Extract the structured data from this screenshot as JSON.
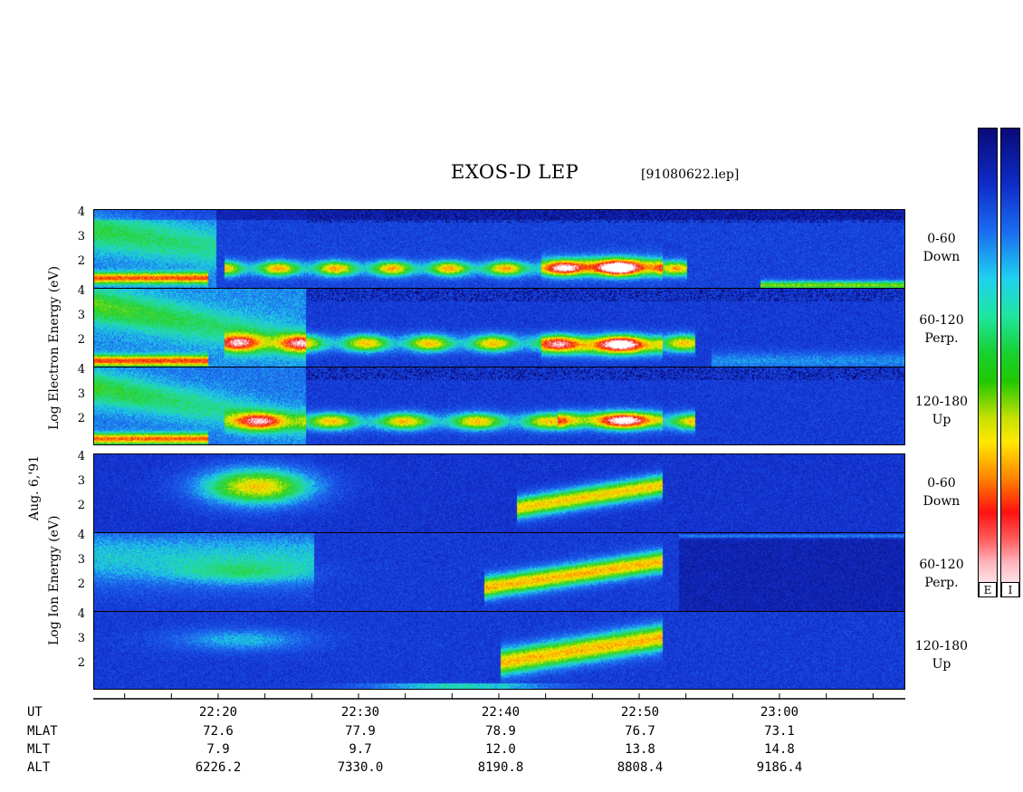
{
  "header": {
    "title": "EXOS-D LEP",
    "file": "[91080622.lep]"
  },
  "chart_data": {
    "type": "heatmap",
    "title": "EXOS-D LEP",
    "date_label": "Aug. 6,'91",
    "electron_ylabel": "Log Electron Energy (eV)",
    "ion_ylabel": "Log Ion Energy (eV)",
    "y_ticks": [
      "4",
      "3",
      "2"
    ],
    "x_time_ticks": [
      "22:20",
      "22:30",
      "22:40",
      "22:50",
      "23:00"
    ],
    "panels": [
      {
        "species": "Electron",
        "angle": "0-60",
        "direction": "Down"
      },
      {
        "species": "Electron",
        "angle": "60-120",
        "direction": "Perp."
      },
      {
        "species": "Electron",
        "angle": "120-180",
        "direction": "Up"
      },
      {
        "species": "Ion",
        "angle": "0-60",
        "direction": "Down"
      },
      {
        "species": "Ion",
        "angle": "60-120",
        "direction": "Perp."
      },
      {
        "species": "Ion",
        "angle": "120-180",
        "direction": "Up"
      }
    ],
    "orbit_rows": [
      {
        "label": "UT",
        "values": [
          "22:20",
          "22:30",
          "22:40",
          "22:50",
          "23:00"
        ]
      },
      {
        "label": "MLAT",
        "values": [
          "72.6",
          "77.9",
          "78.9",
          "76.7",
          "73.1"
        ]
      },
      {
        "label": "MLT",
        "values": [
          "7.9",
          "9.7",
          "12.0",
          "13.8",
          "14.8"
        ]
      },
      {
        "label": "ALT",
        "values": [
          "6226.2",
          "7330.0",
          "8190.8",
          "8808.4",
          "9186.4"
        ]
      }
    ],
    "colorbar_labels": [
      "E",
      "I"
    ]
  }
}
